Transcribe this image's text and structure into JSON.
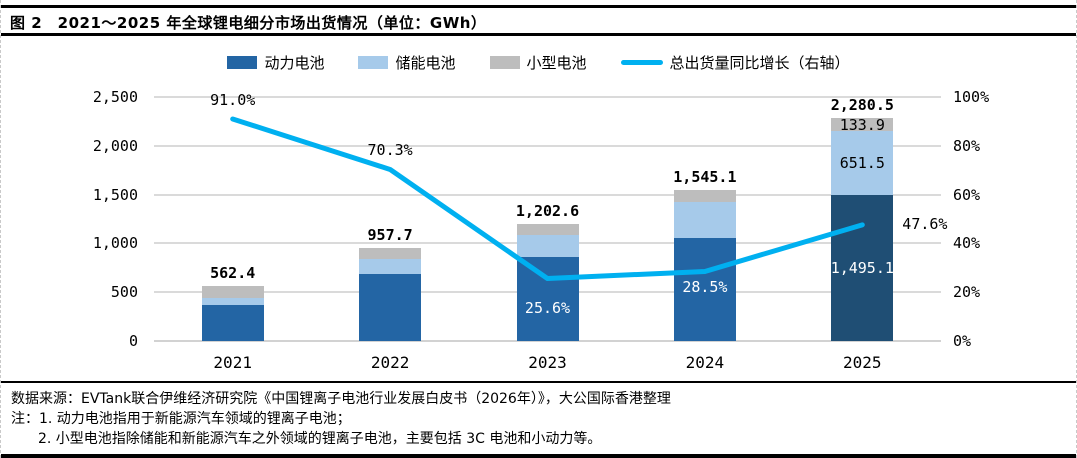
{
  "header": {
    "title": "图 2　2021～2025 年全球锂电细分市场出货情况（单位：GWh）"
  },
  "legend": {
    "items": [
      {
        "label": "动力电池",
        "color": "#2365A4",
        "type": "box"
      },
      {
        "label": "储能电池",
        "color": "#A6CAEA",
        "type": "box"
      },
      {
        "label": "小型电池",
        "color": "#BDBDBD",
        "type": "box"
      },
      {
        "label": "总出货量同比增长（右轴）",
        "color": "#00B0F0",
        "type": "line"
      }
    ]
  },
  "colors": {
    "power": "#2365A4",
    "power_highlight_2025": "#1F4E74",
    "storage": "#A6CAEA",
    "small": "#BDBDBD",
    "line": "#00B0F0",
    "gridline": "#DADADA",
    "label_on_dark": "#FFFFFF",
    "label_default": "#000000"
  },
  "chart_data": {
    "type": "bar",
    "subtype": "stacked-column-with-line",
    "title": "2021～2025 年全球锂电细分市场出货情况",
    "unit": "GWh",
    "categories": [
      "2021",
      "2022",
      "2023",
      "2024",
      "2025"
    ],
    "series": [
      {
        "name": "动力电池",
        "values": [
          371.0,
          684.2,
          865.2,
          1051.2,
          1495.1
        ]
      },
      {
        "name": "储能电池",
        "values": [
          66.3,
          159.3,
          224.2,
          369.8,
          651.5
        ]
      },
      {
        "name": "小型电池",
        "values": [
          125.1,
          114.2,
          113.2,
          124.1,
          133.9
        ]
      }
    ],
    "segments_estimated_from_bar_heights_for": [
      "2021",
      "2022",
      "2023",
      "2024"
    ],
    "totals": [
      562.4,
      957.7,
      1202.6,
      1545.1,
      2280.5
    ],
    "total_labels": [
      "562.4",
      "957.7",
      "1,202.6",
      "1,545.1",
      "2,280.5"
    ],
    "segment_labels_2025": [
      "1,495.1",
      "651.5",
      "133.9"
    ],
    "line": {
      "name": "总出货量同比增长（右轴）",
      "axis": "right",
      "values": [
        91.0,
        70.3,
        25.6,
        28.5,
        47.6
      ],
      "labels": [
        "91.0%",
        "70.3%",
        "25.6%",
        "28.5%",
        "47.6%"
      ]
    },
    "left_axis": {
      "min": 0,
      "max": 2500,
      "step": 500,
      "ticks": [
        "0",
        "500",
        "1,000",
        "1,500",
        "2,000",
        "2,500"
      ]
    },
    "right_axis": {
      "min": 0,
      "max": 100,
      "step": 20,
      "ticks": [
        "0%",
        "20%",
        "40%",
        "60%",
        "80%",
        "100%"
      ]
    },
    "grid": true,
    "legend_position": "top"
  },
  "footer": {
    "source": "数据来源：EVTank联合伊维经济研究院《中国锂离子电池行业发展白皮书（2026年）》，大公国际香港整理",
    "note1": "注：1. 动力电池指用于新能源汽车领域的锂离子电池；",
    "note2": "2. 小型电池指除储能和新能源汽车之外领域的锂离子电池，主要包括 3C 电池和小动力等。"
  }
}
